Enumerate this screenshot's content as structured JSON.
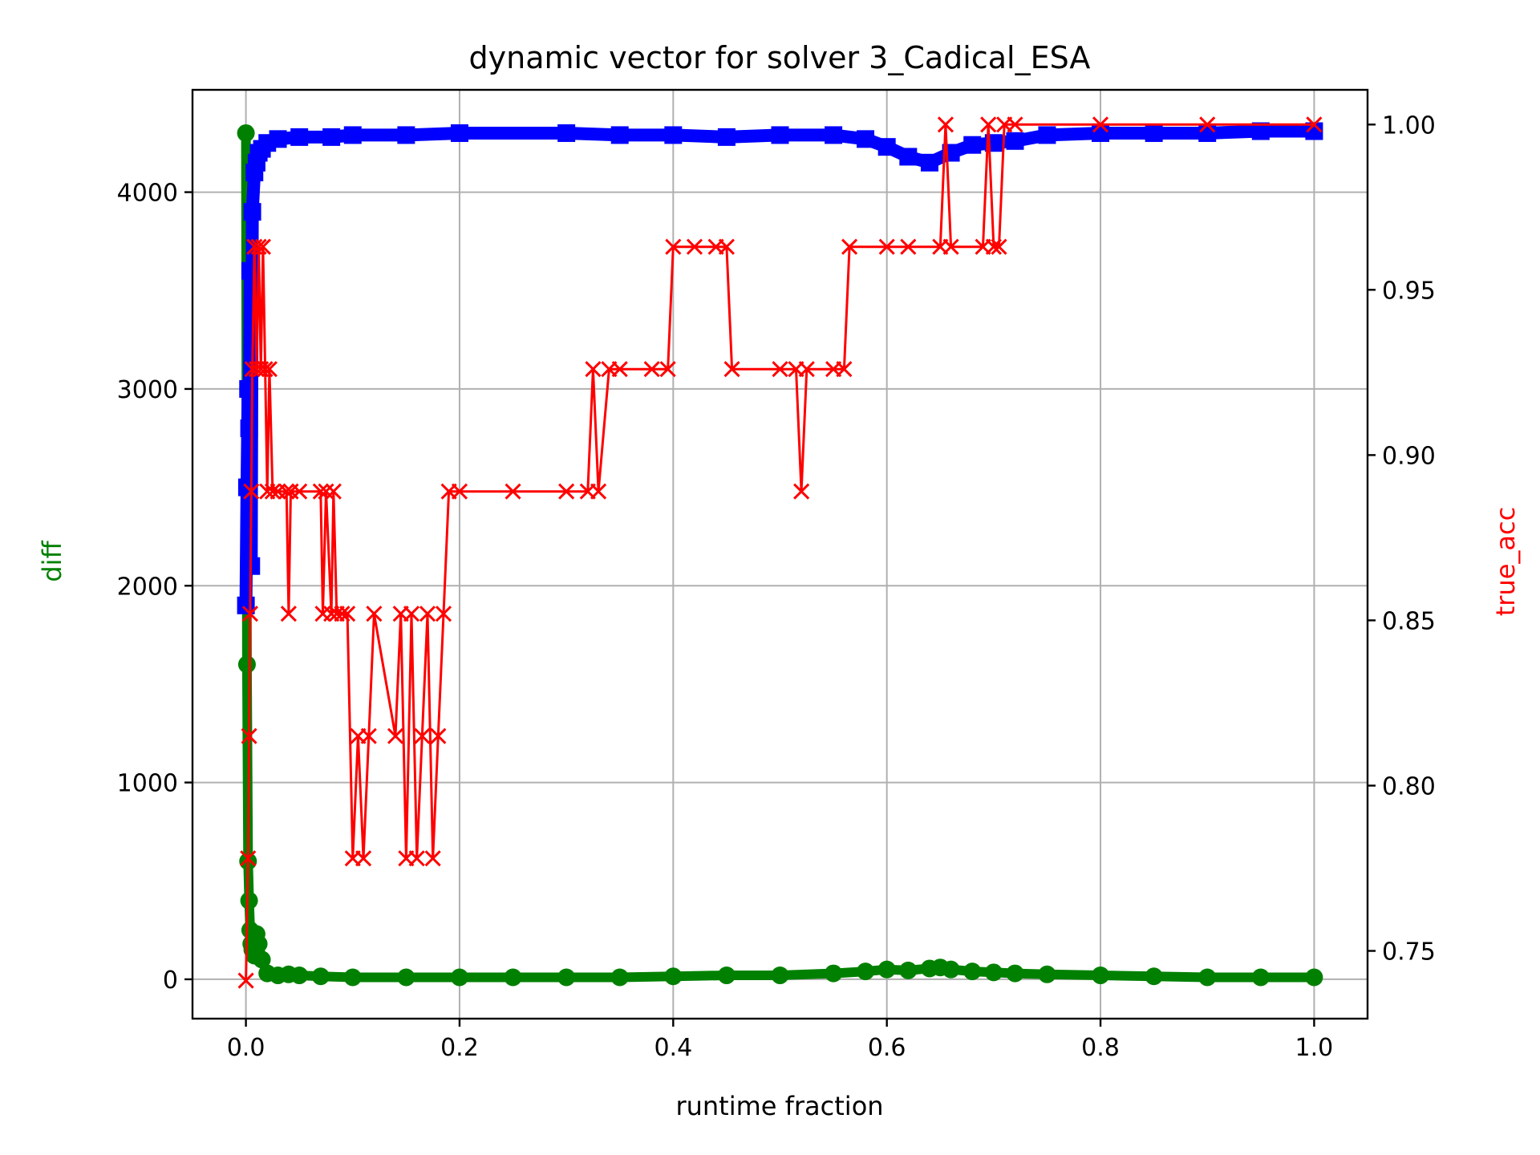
{
  "chart_data": {
    "type": "line",
    "title": "dynamic vector for solver 3_Cadical_ESA",
    "xlabel": "runtime fraction",
    "ylabel_left": "diff",
    "ylabel_right": "true_acc",
    "xlim": [
      -0.05,
      1.05
    ],
    "ylim_left": [
      -200,
      4520
    ],
    "ylim_right": [
      0.7295,
      1.0105
    ],
    "x_ticks": [
      "0.0",
      "0.2",
      "0.4",
      "0.6",
      "0.8",
      "1.0"
    ],
    "y_left_ticks": [
      "0",
      "1000",
      "2000",
      "3000",
      "4000"
    ],
    "y_right_ticks": [
      "0.75",
      "0.80",
      "0.85",
      "0.90",
      "0.95",
      "1.00"
    ],
    "grid": true,
    "colors": {
      "diff": "#008000",
      "blue_series": "#0000ff",
      "true_acc": "#ff0000"
    },
    "series": [
      {
        "axis": "left",
        "marker": "circle",
        "x": [
          0.0,
          0.001,
          0.002,
          0.003,
          0.004,
          0.005,
          0.006,
          0.008,
          0.01,
          0.012,
          0.015,
          0.02,
          0.03,
          0.04,
          0.05,
          0.07,
          0.1,
          0.15,
          0.2,
          0.25,
          0.3,
          0.35,
          0.4,
          0.45,
          0.5,
          0.55,
          0.58,
          0.6,
          0.62,
          0.64,
          0.65,
          0.66,
          0.68,
          0.7,
          0.72,
          0.75,
          0.8,
          0.85,
          0.9,
          0.95,
          1.0
        ],
        "values": [
          4300,
          1600,
          600,
          400,
          250,
          180,
          150,
          120,
          230,
          180,
          100,
          30,
          20,
          25,
          20,
          15,
          10,
          10,
          10,
          10,
          10,
          10,
          15,
          20,
          20,
          30,
          40,
          50,
          45,
          55,
          60,
          50,
          40,
          35,
          30,
          25,
          20,
          15,
          10,
          10,
          10
        ]
      },
      {
        "axis": "left",
        "marker": "square",
        "x": [
          0.0,
          0.001,
          0.002,
          0.003,
          0.004,
          0.005,
          0.006,
          0.008,
          0.01,
          0.012,
          0.015,
          0.02,
          0.03,
          0.05,
          0.08,
          0.1,
          0.15,
          0.2,
          0.3,
          0.35,
          0.4,
          0.45,
          0.5,
          0.55,
          0.58,
          0.6,
          0.62,
          0.64,
          0.66,
          0.68,
          0.7,
          0.72,
          0.75,
          0.8,
          0.85,
          0.9,
          0.95,
          1.0
        ],
        "values": [
          1900,
          2500,
          3000,
          2800,
          3600,
          2100,
          3900,
          4100,
          4150,
          4200,
          4220,
          4250,
          4270,
          4280,
          4280,
          4290,
          4290,
          4300,
          4300,
          4290,
          4290,
          4280,
          4290,
          4290,
          4270,
          4230,
          4180,
          4150,
          4200,
          4240,
          4250,
          4260,
          4290,
          4300,
          4300,
          4300,
          4310,
          4310
        ]
      },
      {
        "axis": "right",
        "marker": "x",
        "x": [
          0.0,
          0.002,
          0.003,
          0.004,
          0.005,
          0.006,
          0.008,
          0.01,
          0.012,
          0.014,
          0.016,
          0.018,
          0.02,
          0.022,
          0.025,
          0.03,
          0.038,
          0.04,
          0.042,
          0.05,
          0.07,
          0.072,
          0.075,
          0.08,
          0.082,
          0.085,
          0.09,
          0.095,
          0.1,
          0.105,
          0.11,
          0.115,
          0.12,
          0.14,
          0.145,
          0.15,
          0.155,
          0.16,
          0.165,
          0.17,
          0.175,
          0.18,
          0.185,
          0.19,
          0.2,
          0.25,
          0.3,
          0.32,
          0.325,
          0.33,
          0.34,
          0.35,
          0.38,
          0.395,
          0.4,
          0.42,
          0.44,
          0.45,
          0.455,
          0.5,
          0.515,
          0.52,
          0.525,
          0.55,
          0.56,
          0.565,
          0.6,
          0.62,
          0.65,
          0.655,
          0.66,
          0.69,
          0.695,
          0.7,
          0.705,
          0.71,
          0.72,
          0.8,
          0.9,
          1.0
        ],
        "values": [
          0.741,
          0.778,
          0.815,
          0.852,
          0.889,
          0.926,
          0.963,
          0.926,
          0.963,
          0.926,
          0.963,
          0.926,
          0.889,
          0.926,
          0.889,
          0.889,
          0.889,
          0.852,
          0.889,
          0.889,
          0.889,
          0.852,
          0.889,
          0.852,
          0.889,
          0.852,
          0.852,
          0.852,
          0.778,
          0.815,
          0.778,
          0.815,
          0.852,
          0.815,
          0.852,
          0.778,
          0.852,
          0.778,
          0.815,
          0.852,
          0.778,
          0.815,
          0.852,
          0.889,
          0.889,
          0.889,
          0.889,
          0.889,
          0.926,
          0.889,
          0.926,
          0.926,
          0.926,
          0.926,
          0.963,
          0.963,
          0.963,
          0.963,
          0.926,
          0.926,
          0.926,
          0.889,
          0.926,
          0.926,
          0.926,
          0.963,
          0.963,
          0.963,
          0.963,
          1.0,
          0.963,
          0.963,
          1.0,
          0.963,
          0.963,
          1.0,
          1.0,
          1.0,
          1.0,
          1.0
        ]
      }
    ]
  }
}
